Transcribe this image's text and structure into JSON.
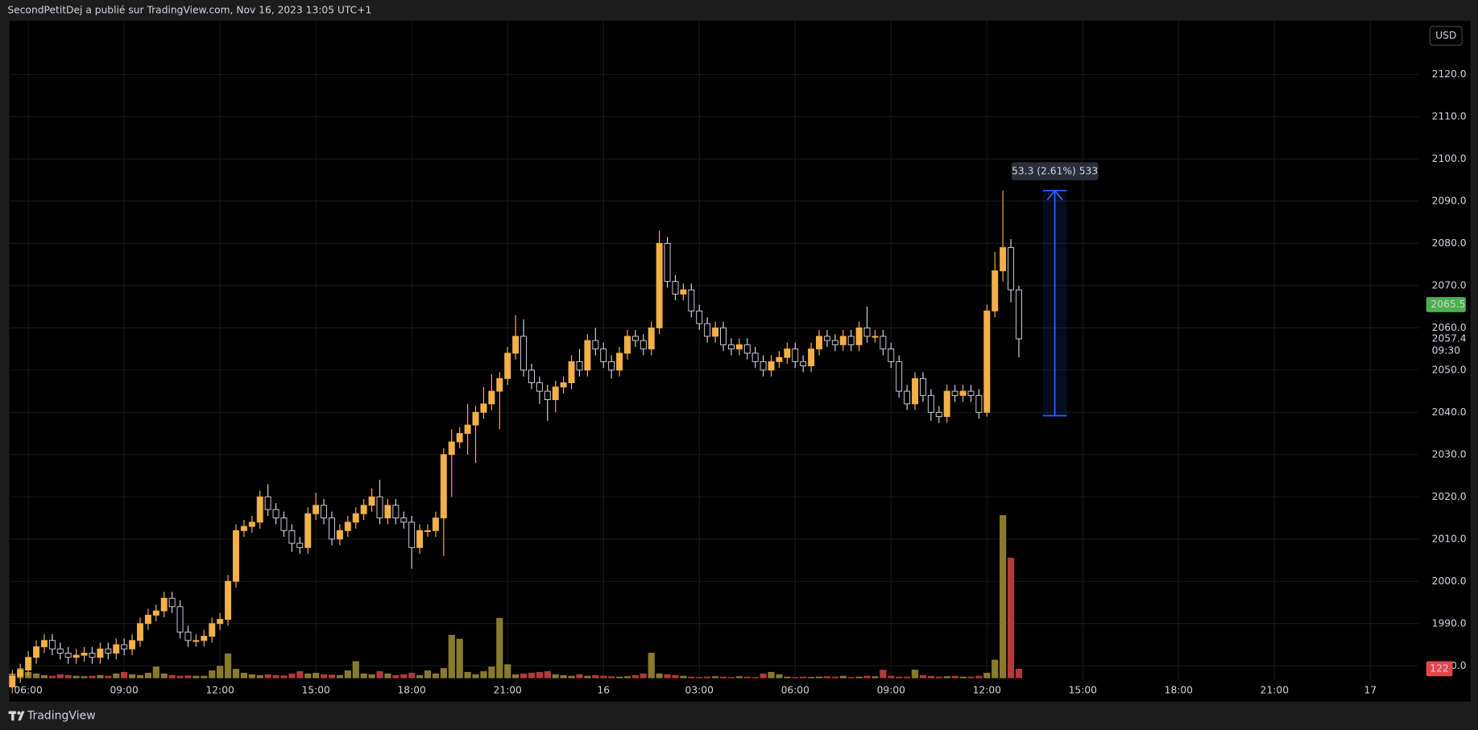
{
  "chart_data": {
    "type": "candlestick",
    "header": "SecondPetitDej a publié sur TradingView.com, Nov 16, 2023 13:05 UTC+1",
    "footer": "TradingView",
    "currency": "USD",
    "xlim": [
      5.41,
      49.51
    ],
    "xticks": [
      {
        "value": 6,
        "label": "06:00"
      },
      {
        "value": 9,
        "label": "09:00"
      },
      {
        "value": 12,
        "label": "12:00"
      },
      {
        "value": 15,
        "label": "15:00"
      },
      {
        "value": 18,
        "label": "18:00"
      },
      {
        "value": 21,
        "label": "21:00"
      },
      {
        "value": 24,
        "label": "16"
      },
      {
        "value": 27,
        "label": "03:00"
      },
      {
        "value": 30,
        "label": "06:00"
      },
      {
        "value": 33,
        "label": "09:00"
      },
      {
        "value": 36,
        "label": "12:00"
      },
      {
        "value": 39,
        "label": "15:00"
      },
      {
        "value": 42,
        "label": "18:00"
      },
      {
        "value": 45,
        "label": "21:00"
      },
      {
        "value": 48,
        "label": "17"
      }
    ],
    "ylim": [
      1971.5,
      2132.7
    ],
    "yticks": [
      {
        "value": 1980,
        "label": "1980.0"
      },
      {
        "value": 1990,
        "label": "1990.0"
      },
      {
        "value": 2000,
        "label": "2000.0"
      },
      {
        "value": 2010,
        "label": "2010.0"
      },
      {
        "value": 2020,
        "label": "2020.0"
      },
      {
        "value": 2030,
        "label": "2030.0"
      },
      {
        "value": 2040,
        "label": "2040.0"
      },
      {
        "value": 2050,
        "label": "2050.0"
      },
      {
        "value": 2060,
        "label": "2060.0"
      },
      {
        "value": 2070,
        "label": "2070.0"
      },
      {
        "value": 2080,
        "label": "2080.0"
      },
      {
        "value": 2090,
        "label": "2090.0"
      },
      {
        "value": 2100,
        "label": "2100.0"
      },
      {
        "value": 2110,
        "label": "2110.0"
      },
      {
        "value": 2120,
        "label": "2120.0"
      }
    ],
    "grid": true,
    "up_color": "#f2b04b",
    "down_color": "#000000",
    "down_border": "#d1d4dc",
    "volume_up_color": "#8a7a2e",
    "volume_down_color": "#b03a3c",
    "volume_lim": [
      0,
      7000
    ],
    "x": [
      5.5,
      5.75,
      6,
      6.25,
      6.5,
      6.75,
      7,
      7.25,
      7.5,
      7.75,
      8,
      8.25,
      8.5,
      8.75,
      9,
      9.25,
      9.5,
      9.75,
      10,
      10.25,
      10.5,
      10.75,
      11,
      11.25,
      11.5,
      11.75,
      12,
      12.25,
      12.5,
      12.75,
      13,
      13.25,
      13.5,
      13.75,
      14,
      14.25,
      14.5,
      14.75,
      15,
      15.25,
      15.5,
      15.75,
      16,
      16.25,
      16.5,
      16.75,
      17,
      17.25,
      17.5,
      17.75,
      18,
      18.25,
      18.5,
      18.75,
      19,
      19.25,
      19.5,
      19.75,
      20,
      20.25,
      20.5,
      20.75,
      21,
      21.25,
      21.5,
      21.75,
      22,
      22.25,
      22.5,
      22.75,
      23,
      23.25,
      23.5,
      23.75,
      24,
      24.25,
      24.5,
      24.75,
      25,
      25.25,
      25.5,
      25.75,
      26,
      26.25,
      26.5,
      26.75,
      27,
      27.25,
      27.5,
      27.75,
      28,
      28.25,
      28.5,
      28.75,
      29,
      29.25,
      29.5,
      29.75,
      30,
      30.25,
      30.5,
      30.75,
      31,
      31.25,
      31.5,
      31.75,
      32,
      32.25,
      32.5,
      32.75,
      33,
      33.25,
      33.5,
      33.75,
      34,
      34.25,
      34.5,
      34.75,
      35,
      35.25,
      35.5,
      35.75,
      36,
      36.25,
      36.5,
      36.75,
      37
    ],
    "open": [
      1975,
      1977.5,
      1979,
      1982,
      1984.5,
      1986,
      1984,
      1983,
      1982,
      1982.5,
      1983,
      1982,
      1984,
      1983,
      1985,
      1984,
      1986,
      1990,
      1992,
      1993,
      1996,
      1994,
      1988,
      1986,
      1986,
      1987,
      1990,
      1991,
      2000,
      2012,
      2013,
      2014,
      2020,
      2017,
      2015,
      2012,
      2009,
      2008,
      2016,
      2018,
      2015,
      2010,
      2012,
      2014,
      2016,
      2018,
      2020,
      2015,
      2018,
      2015,
      2014,
      2008,
      2012,
      2012,
      2015,
      2030,
      2033,
      2035,
      2037,
      2040,
      2042,
      2045,
      2048,
      2054,
      2058,
      2050,
      2047,
      2045,
      2043,
      2046,
      2047,
      2052,
      2050,
      2057,
      2055,
      2052,
      2050,
      2054,
      2058,
      2057,
      2055,
      2060,
      2080,
      2071,
      2068,
      2069,
      2064,
      2061,
      2058,
      2060,
      2056,
      2055,
      2056,
      2054,
      2052,
      2050,
      2052,
      2053,
      2055,
      2052,
      2051,
      2055,
      2058,
      2057,
      2056,
      2058,
      2056,
      2060,
      2058,
      2058,
      2055,
      2052,
      2045,
      2042,
      2048,
      2044,
      2040,
      2039,
      2045,
      2044,
      2045,
      2044,
      2040,
      2064,
      2073.5,
      2079,
      2069
    ],
    "high": [
      1979,
      1980.5,
      1983.5,
      1986,
      1987.5,
      1987.5,
      1985.5,
      1984.5,
      1984,
      1984.5,
      1984.5,
      1985.5,
      1985.5,
      1986.5,
      1986.5,
      1987.5,
      1991.5,
      1993.5,
      1994.5,
      1997.5,
      1997.5,
      1995.5,
      1989.5,
      1987.5,
      1988.5,
      1991.5,
      1992.5,
      2001.5,
      2013.5,
      2014.5,
      2015.5,
      2021.5,
      2023,
      2018.5,
      2016.5,
      2013.5,
      2010.5,
      2017.5,
      2021,
      2019.5,
      2016.5,
      2013.5,
      2015.5,
      2017.5,
      2019.5,
      2022,
      2024,
      2019.5,
      2019.5,
      2016.5,
      2015.5,
      2013.5,
      2013.5,
      2016.5,
      2031.5,
      2036,
      2036.5,
      2042,
      2041.5,
      2046,
      2049,
      2049.5,
      2055.5,
      2063,
      2062,
      2051.5,
      2048.5,
      2046.5,
      2047.5,
      2048.5,
      2053.5,
      2055,
      2058.5,
      2060,
      2056.5,
      2053.5,
      2055.5,
      2059.5,
      2059.5,
      2058.5,
      2061.5,
      2083,
      2081.5,
      2072.5,
      2070.5,
      2070.5,
      2065.5,
      2062.5,
      2061.5,
      2061.5,
      2057.5,
      2057.5,
      2057.5,
      2055.5,
      2053.5,
      2053.5,
      2054.5,
      2056.5,
      2056.5,
      2053.5,
      2056.5,
      2059.5,
      2059.5,
      2058.5,
      2059.5,
      2059.5,
      2061.5,
      2065,
      2059.5,
      2059.5,
      2056.5,
      2053.5,
      2046.5,
      2049.5,
      2049.5,
      2045.5,
      2041.5,
      2046.5,
      2046.5,
      2046.5,
      2046.5,
      2045.5,
      2065.5,
      2078,
      2092.5,
      2081,
      2070
    ],
    "low": [
      1973.5,
      1976,
      1977.5,
      1980.5,
      1983,
      1982.5,
      1981.5,
      1980.5,
      1980.5,
      1981,
      1980.5,
      1980.5,
      1981.5,
      1981.5,
      1982.5,
      1982.5,
      1984.5,
      1988.5,
      1990.5,
      1991.5,
      1992.5,
      1986.5,
      1984.5,
      1984.5,
      1984.5,
      1985.5,
      1988.5,
      1989.5,
      1998.5,
      2010.5,
      2011.5,
      2012.5,
      2015.5,
      2013.5,
      2010.5,
      2007,
      2006.5,
      2006.5,
      2014.5,
      2013.5,
      2008.5,
      2008.5,
      2010.5,
      2012.5,
      2014.5,
      2016.5,
      2013.5,
      2013.5,
      2013.5,
      2012.5,
      2003,
      2006.5,
      2010.5,
      2010.5,
      2006,
      2020,
      2031.5,
      2030,
      2028,
      2038.5,
      2040.5,
      2036,
      2046.5,
      2052.5,
      2048.5,
      2045.5,
      2042,
      2038,
      2040,
      2044.5,
      2045.5,
      2048.5,
      2048.5,
      2053.5,
      2050.5,
      2048,
      2048.5,
      2052.5,
      2055.5,
      2053.5,
      2053.5,
      2058.5,
      2069.5,
      2066.5,
      2066.5,
      2062.5,
      2059.5,
      2056.5,
      2056.5,
      2054.5,
      2053.5,
      2053.5,
      2052.5,
      2050.5,
      2048.5,
      2048.5,
      2050.5,
      2051.5,
      2050.5,
      2049.5,
      2049.5,
      2053.5,
      2055.5,
      2054.5,
      2054.5,
      2054.5,
      2054.5,
      2056.5,
      2056.5,
      2053.5,
      2050.5,
      2043.5,
      2040.5,
      2040.5,
      2042.5,
      2038,
      2037.5,
      2037.5,
      2042.5,
      2042.5,
      2042.5,
      2038.5,
      2039,
      2062.5,
      2071,
      2066,
      2053
    ],
    "close": [
      1977.5,
      1979,
      1982,
      1984.5,
      1986,
      1984,
      1983,
      1982,
      1982.5,
      1983,
      1982,
      1984,
      1983,
      1985,
      1984,
      1986,
      1990,
      1992,
      1993,
      1996,
      1994,
      1988,
      1986,
      1986,
      1987,
      1990,
      1991,
      2000,
      2012,
      2013,
      2014,
      2020,
      2017,
      2015,
      2012,
      2009,
      2008,
      2016,
      2018,
      2015,
      2010,
      2012,
      2014,
      2016,
      2018,
      2020,
      2015,
      2018,
      2015,
      2014,
      2008,
      2012,
      2012,
      2015,
      2030,
      2033,
      2035,
      2037,
      2040,
      2042,
      2045,
      2048,
      2054,
      2058,
      2050,
      2047,
      2045,
      2043,
      2046,
      2047,
      2052,
      2050,
      2057,
      2055,
      2052,
      2050,
      2054,
      2058,
      2057,
      2055,
      2060,
      2080,
      2071,
      2068,
      2069,
      2064,
      2061,
      2058,
      2060,
      2056,
      2055,
      2056,
      2054,
      2052,
      2050,
      2052,
      2053,
      2055,
      2052,
      2051,
      2055,
      2058,
      2057,
      2056,
      2058,
      2056,
      2060,
      2058,
      2058,
      2055,
      2052,
      2045,
      2042,
      2048,
      2044,
      2040,
      2039,
      2045,
      2044,
      2045,
      2044,
      2040,
      2064,
      2073.5,
      2079,
      2069,
      2057.4
    ],
    "volume": [
      60,
      130,
      80,
      60,
      40,
      30,
      50,
      40,
      30,
      25,
      30,
      40,
      30,
      60,
      80,
      50,
      40,
      70,
      150,
      60,
      40,
      30,
      35,
      30,
      30,
      100,
      160,
      320,
      120,
      70,
      50,
      40,
      50,
      40,
      35,
      60,
      90,
      60,
      70,
      50,
      45,
      40,
      100,
      220,
      60,
      50,
      90,
      60,
      40,
      50,
      70,
      40,
      100,
      60,
      130,
      560,
      510,
      80,
      50,
      90,
      150,
      780,
      180,
      50,
      60,
      70,
      80,
      90,
      50,
      40,
      30,
      50,
      30,
      40,
      30,
      25,
      20,
      25,
      40,
      60,
      330,
      60,
      50,
      40,
      30,
      20,
      15,
      20,
      25,
      20,
      15,
      25,
      20,
      15,
      60,
      80,
      50,
      20,
      15,
      20,
      15,
      20,
      25,
      20,
      30,
      15,
      20,
      30,
      25,
      110,
      30,
      20,
      20,
      110,
      40,
      30,
      20,
      25,
      30,
      20,
      20,
      30,
      70,
      240,
      2110,
      1560,
      122
    ],
    "last_price": 2057.4,
    "countdown": "09:30",
    "marker_price": 2065.5,
    "marker_color": "#4caf50",
    "measure": {
      "label": "53.3 (2.61%) 533",
      "from": 2039.2,
      "to": 2092.5,
      "x": [
        37.75,
        38.5
      ],
      "color": "#2962ff"
    }
  }
}
